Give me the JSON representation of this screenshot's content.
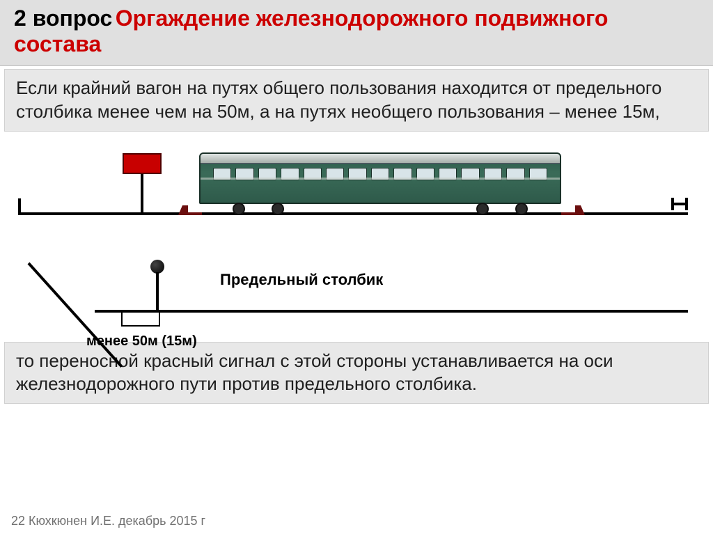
{
  "header": {
    "prefix": "2 вопрос",
    "title": "Оргаждение железнодорожного подвижного состава",
    "prefix_color": "#000000",
    "title_color": "#cc0000",
    "font_size": 32,
    "background": "#e0e0e0"
  },
  "paragraph_top": "Если крайний вагон на путях общего пользования находится от предельного столбика менее чем на 50м, а на путях необщего пользования – менее 15м,",
  "paragraph_bottom": "то переносной красный сигнал с этой стороны устанавливается на оси железнодорожного пути против предельного столбика.",
  "paragraph_box": {
    "background": "#e8e8e8",
    "font_size": 26,
    "text_color": "#202020"
  },
  "diagram": {
    "signal": {
      "flag_color": "#c80000",
      "flag_border": "#500000"
    },
    "wagon": {
      "body_color_top": "#2a594a",
      "body_color_mid": "#3a6b58",
      "body_color_bottom": "#2e5a4a",
      "roof_color": "#dfe4e2",
      "window_color": "#d8e4e8",
      "window_count": 15
    },
    "brake_shoe_color": "#6b0e0e",
    "limit_post_label": "Предельный столбик",
    "dimension_label": "менее 50м (15м)",
    "label_font_size": 22,
    "dim_font_size": 20,
    "line_color": "#000000",
    "background": "#ffffff"
  },
  "footer": "22   Кюхкюнен И.Е. декабрь 2015 г"
}
